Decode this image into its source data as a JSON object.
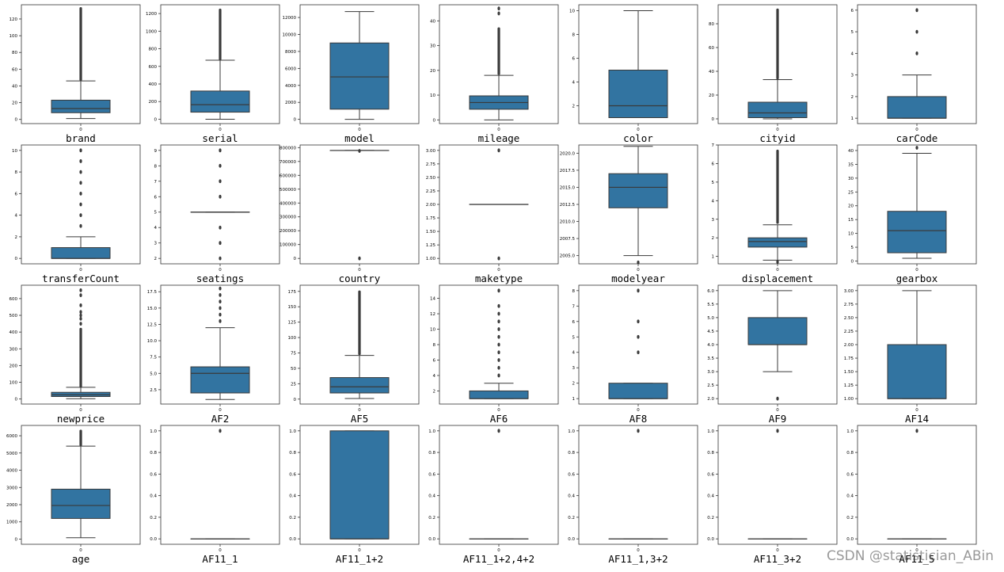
{
  "watermark": "CSDN @statistician_ABin",
  "colors": {
    "box_fill": "#3274a1",
    "line": "#3a3a3a",
    "frame": "#333333",
    "text": "#000000"
  },
  "chart_data": [
    {
      "type": "box",
      "xlabel": "brand",
      "xtick": "0",
      "ylim": [
        -5,
        137
      ],
      "yticks": [
        0,
        20,
        40,
        60,
        80,
        100,
        120
      ],
      "ytick_labels": [
        "0",
        "20",
        "40",
        "60",
        "80",
        "100",
        "120"
      ],
      "stats": {
        "whisker_low": 1,
        "q1": 8,
        "median": 13,
        "q3": 23,
        "whisker_high": 46
      },
      "outliers": [
        {
          "from": 47,
          "to": 133,
          "dense": true
        }
      ]
    },
    {
      "type": "box",
      "xlabel": "serial",
      "xtick": "0",
      "ylim": [
        -50,
        1300
      ],
      "yticks": [
        0,
        200,
        400,
        600,
        800,
        1000,
        1200
      ],
      "ytick_labels": [
        "0",
        "200",
        "400",
        "600",
        "800",
        "1000",
        "1200"
      ],
      "stats": {
        "whisker_low": 0,
        "q1": 80,
        "median": 165,
        "q3": 320,
        "whisker_high": 670
      },
      "outliers": [
        {
          "from": 680,
          "to": 1245,
          "dense": true
        }
      ]
    },
    {
      "type": "box",
      "xlabel": "model",
      "xtick": "0",
      "ylim": [
        -500,
        13500
      ],
      "yticks": [
        0,
        2000,
        4000,
        6000,
        8000,
        10000,
        12000
      ],
      "ytick_labels": [
        "0",
        "2000",
        "4000",
        "6000",
        "8000",
        "10000",
        "12000"
      ],
      "stats": {
        "whisker_low": 0,
        "q1": 1200,
        "median": 5000,
        "q3": 9000,
        "whisker_high": 12700
      },
      "outliers": []
    },
    {
      "type": "box",
      "xlabel": "mileage",
      "xtick": "0",
      "ylim": [
        -1.5,
        46.5
      ],
      "yticks": [
        0,
        10,
        20,
        30,
        40
      ],
      "ytick_labels": [
        "0",
        "10",
        "20",
        "30",
        "40"
      ],
      "stats": {
        "whisker_low": 0,
        "q1": 4.3,
        "median": 7,
        "q3": 9.7,
        "whisker_high": 18
      },
      "outliers": [
        {
          "from": 18.5,
          "to": 37,
          "dense": true
        },
        43,
        45
      ]
    },
    {
      "type": "box",
      "xlabel": "color",
      "xtick": "0",
      "ylim": [
        0.5,
        10.5
      ],
      "yticks": [
        2,
        4,
        6,
        8,
        10
      ],
      "ytick_labels": [
        "2",
        "4",
        "6",
        "8",
        "10"
      ],
      "stats": {
        "whisker_low": 1,
        "q1": 1,
        "median": 2,
        "q3": 5,
        "whisker_high": 10
      },
      "outliers": []
    },
    {
      "type": "box",
      "xlabel": "cityid",
      "xtick": "0",
      "ylim": [
        -4,
        96
      ],
      "yticks": [
        0,
        20,
        40,
        60,
        80
      ],
      "ytick_labels": [
        "0",
        "20",
        "40",
        "60",
        "80"
      ],
      "stats": {
        "whisker_low": 0,
        "q1": 1,
        "median": 5,
        "q3": 14,
        "whisker_high": 33
      },
      "outliers": [
        {
          "from": 34,
          "to": 92,
          "dense": true
        }
      ]
    },
    {
      "type": "box",
      "xlabel": "carCode",
      "xtick": "0",
      "ylim": [
        0.75,
        6.25
      ],
      "yticks": [
        1,
        2,
        3,
        4,
        5,
        6
      ],
      "ytick_labels": [
        "1",
        "2",
        "3",
        "4",
        "5",
        "6"
      ],
      "stats": {
        "whisker_low": 1,
        "q1": 1,
        "median": 1,
        "q3": 2,
        "whisker_high": 3
      },
      "outliers": [
        4,
        5,
        6
      ]
    },
    {
      "type": "box",
      "xlabel": "transferCount",
      "xtick": "0",
      "ylim": [
        -0.5,
        10.5
      ],
      "yticks": [
        0,
        2,
        4,
        6,
        8,
        10
      ],
      "ytick_labels": [
        "0",
        "2",
        "4",
        "6",
        "8",
        "10"
      ],
      "stats": {
        "whisker_low": 0,
        "q1": 0,
        "median": 0,
        "q3": 1,
        "whisker_high": 2
      },
      "outliers": [
        3,
        4,
        5,
        6,
        7,
        8,
        9,
        10
      ]
    },
    {
      "type": "box",
      "xlabel": "seatings",
      "xtick": "0",
      "ylim": [
        1.65,
        9.35
      ],
      "yticks": [
        2,
        3,
        4,
        5,
        6,
        7,
        8,
        9
      ],
      "ytick_labels": [
        "2",
        "3",
        "4",
        "5",
        "6",
        "7",
        "8",
        "9"
      ],
      "stats": {
        "whisker_low": 5,
        "q1": 5,
        "median": 5,
        "q3": 5,
        "whisker_high": 5
      },
      "outliers": [
        2,
        3,
        4,
        6,
        7,
        8,
        9
      ]
    },
    {
      "type": "box",
      "xlabel": "country",
      "xtick": "0",
      "ylim": [
        -39000,
        819000
      ],
      "yticks": [
        0,
        100000,
        200000,
        300000,
        400000,
        500000,
        600000,
        700000,
        800000
      ],
      "ytick_labels": [
        "0",
        "100000",
        "200000",
        "300000",
        "400000",
        "500000",
        "600000",
        "700000",
        "800000"
      ],
      "stats": {
        "whisker_low": 779412,
        "q1": 779412,
        "median": 779412,
        "q3": 779412,
        "whisker_high": 779412
      },
      "outliers": [
        0,
        776000
      ]
    },
    {
      "type": "box",
      "xlabel": "maketype",
      "xtick": "0",
      "ylim": [
        0.9,
        3.1
      ],
      "yticks": [
        1.0,
        1.25,
        1.5,
        1.75,
        2.0,
        2.25,
        2.5,
        2.75,
        3.0
      ],
      "ytick_labels": [
        "1.00",
        "1.25",
        "1.50",
        "1.75",
        "2.00",
        "2.25",
        "2.50",
        "2.75",
        "3.00"
      ],
      "stats": {
        "whisker_low": 2,
        "q1": 2,
        "median": 2,
        "q3": 2,
        "whisker_high": 2
      },
      "outliers": [
        1,
        3
      ]
    },
    {
      "type": "box",
      "xlabel": "modelyear",
      "xtick": "0",
      "ylim": [
        2003.8,
        2021.2
      ],
      "yticks": [
        2005,
        2007.5,
        2010,
        2012.5,
        2015,
        2017.5,
        2020
      ],
      "ytick_labels": [
        "2005.0",
        "2007.5",
        "2010.0",
        "2012.5",
        "2015.0",
        "2017.5",
        "2020.0"
      ],
      "stats": {
        "whisker_low": 2005,
        "q1": 2012,
        "median": 2015,
        "q3": 2017,
        "whisker_high": 2021
      },
      "outliers": [
        2004
      ]
    },
    {
      "type": "box",
      "xlabel": "displacement",
      "xtick": "0",
      "ylim": [
        0.6,
        7.0
      ],
      "yticks": [
        1,
        2,
        3,
        4,
        5,
        6,
        7
      ],
      "ytick_labels": [
        "1",
        "2",
        "3",
        "4",
        "5",
        "6",
        "7"
      ],
      "stats": {
        "whisker_low": 0.8,
        "q1": 1.5,
        "median": 1.8,
        "q3": 2.0,
        "whisker_high": 2.7
      },
      "outliers": [
        0.7,
        {
          "from": 2.8,
          "to": 6.7,
          "dense": true
        }
      ]
    },
    {
      "type": "box",
      "xlabel": "gearbox",
      "xtick": "0",
      "ylim": [
        -1,
        42
      ],
      "yticks": [
        0,
        5,
        10,
        15,
        20,
        25,
        30,
        35,
        40
      ],
      "ytick_labels": [
        "0",
        "5",
        "10",
        "15",
        "20",
        "25",
        "30",
        "35",
        "40"
      ],
      "stats": {
        "whisker_low": 1,
        "q1": 3,
        "median": 11,
        "q3": 18,
        "whisker_high": 39
      },
      "outliers": [
        41
      ]
    },
    {
      "type": "box",
      "xlabel": "newprice",
      "xtick": "0",
      "ylim": [
        -30,
        680
      ],
      "yticks": [
        0,
        100,
        200,
        300,
        400,
        500,
        600
      ],
      "ytick_labels": [
        "0",
        "100",
        "200",
        "300",
        "400",
        "500",
        "600"
      ],
      "stats": {
        "whisker_low": 2,
        "q1": 15,
        "median": 25,
        "q3": 40,
        "whisker_high": 70
      },
      "outliers": [
        {
          "from": 72,
          "to": 420,
          "dense": true
        },
        450,
        480,
        500,
        520,
        560,
        620,
        650
      ]
    },
    {
      "type": "box",
      "xlabel": "AF2",
      "xtick": "0",
      "ylim": [
        0.3,
        18.5
      ],
      "yticks": [
        2.5,
        5.0,
        7.5,
        10.0,
        12.5,
        15.0,
        17.5
      ],
      "ytick_labels": [
        "2.5",
        "5.0",
        "7.5",
        "10.0",
        "12.5",
        "15.0",
        "17.5"
      ],
      "stats": {
        "whisker_low": 1,
        "q1": 2,
        "median": 5,
        "q3": 6,
        "whisker_high": 12
      },
      "outliers": [
        13,
        14,
        15,
        16,
        17,
        18
      ]
    },
    {
      "type": "box",
      "xlabel": "AF5",
      "xtick": "0",
      "ylim": [
        -8,
        185
      ],
      "yticks": [
        0,
        25,
        50,
        75,
        100,
        125,
        150,
        175
      ],
      "ytick_labels": [
        "0",
        "25",
        "50",
        "75",
        "100",
        "125",
        "150",
        "175"
      ],
      "stats": {
        "whisker_low": 1,
        "q1": 10,
        "median": 20,
        "q3": 35,
        "whisker_high": 71
      },
      "outliers": [
        {
          "from": 73,
          "to": 175,
          "dense": true
        }
      ]
    },
    {
      "type": "box",
      "xlabel": "AF6",
      "xtick": "0",
      "ylim": [
        0.3,
        15.7
      ],
      "yticks": [
        2,
        4,
        6,
        8,
        10,
        12,
        14
      ],
      "ytick_labels": [
        "2",
        "4",
        "6",
        "8",
        "10",
        "12",
        "14"
      ],
      "stats": {
        "whisker_low": 1,
        "q1": 1,
        "median": 1,
        "q3": 2,
        "whisker_high": 3
      },
      "outliers": [
        4,
        5,
        6,
        7,
        8,
        9,
        10,
        11,
        12,
        13,
        15
      ]
    },
    {
      "type": "box",
      "xlabel": "AF8",
      "xtick": "0",
      "ylim": [
        0.65,
        8.35
      ],
      "yticks": [
        1,
        2,
        3,
        4,
        5,
        6,
        7,
        8
      ],
      "ytick_labels": [
        "1",
        "2",
        "3",
        "4",
        "5",
        "6",
        "7",
        "8"
      ],
      "stats": {
        "whisker_low": 1,
        "q1": 1,
        "median": 1,
        "q3": 2,
        "whisker_high": 2
      },
      "outliers": [
        4,
        5,
        6,
        8
      ]
    },
    {
      "type": "box",
      "xlabel": "AF9",
      "xtick": "0",
      "ylim": [
        1.8,
        6.2
      ],
      "yticks": [
        2.0,
        2.5,
        3.0,
        3.5,
        4.0,
        4.5,
        5.0,
        5.5,
        6.0
      ],
      "ytick_labels": [
        "2.0",
        "2.5",
        "3.0",
        "3.5",
        "4.0",
        "4.5",
        "5.0",
        "5.5",
        "6.0"
      ],
      "stats": {
        "whisker_low": 3,
        "q1": 4,
        "median": 4,
        "q3": 5,
        "whisker_high": 6
      },
      "outliers": [
        2
      ]
    },
    {
      "type": "box",
      "xlabel": "AF14",
      "xtick": "0",
      "ylim": [
        0.9,
        3.1
      ],
      "yticks": [
        1.0,
        1.25,
        1.5,
        1.75,
        2.0,
        2.25,
        2.5,
        2.75,
        3.0
      ],
      "ytick_labels": [
        "1.00",
        "1.25",
        "1.50",
        "1.75",
        "2.00",
        "2.25",
        "2.50",
        "2.75",
        "3.00"
      ],
      "stats": {
        "whisker_low": 1,
        "q1": 1,
        "median": 1,
        "q3": 2,
        "whisker_high": 3
      },
      "outliers": []
    },
    {
      "type": "box",
      "xlabel": "age",
      "xtick": "0",
      "ylim": [
        -300,
        6600
      ],
      "yticks": [
        0,
        1000,
        2000,
        3000,
        4000,
        5000,
        6000
      ],
      "ytick_labels": [
        "0",
        "1000",
        "2000",
        "3000",
        "4000",
        "5000",
        "6000"
      ],
      "stats": {
        "whisker_low": 80,
        "q1": 1200,
        "median": 1950,
        "q3": 2900,
        "whisker_high": 5400
      },
      "outliers": [
        {
          "from": 5450,
          "to": 6300,
          "dense": true
        }
      ]
    },
    {
      "type": "box",
      "xlabel": "AF11_1",
      "xtick": "0",
      "ylim": [
        -0.05,
        1.05
      ],
      "yticks": [
        0,
        0.2,
        0.4,
        0.6,
        0.8,
        1.0
      ],
      "ytick_labels": [
        "0.0",
        "0.2",
        "0.4",
        "0.6",
        "0.8",
        "1.0"
      ],
      "stats": {
        "whisker_low": 0,
        "q1": 0,
        "median": 0,
        "q3": 0,
        "whisker_high": 0
      },
      "outliers": [
        1
      ]
    },
    {
      "type": "box",
      "xlabel": "AF11_1+2",
      "xtick": "0",
      "ylim": [
        -0.05,
        1.05
      ],
      "yticks": [
        0,
        0.2,
        0.4,
        0.6,
        0.8,
        1.0
      ],
      "ytick_labels": [
        "0.0",
        "0.2",
        "0.4",
        "0.6",
        "0.8",
        "1.0"
      ],
      "stats": {
        "whisker_low": 0,
        "q1": 0,
        "median": 0,
        "q3": 1,
        "whisker_high": 1
      },
      "outliers": []
    },
    {
      "type": "box",
      "xlabel": "AF11_1+2,4+2",
      "xtick": "0",
      "ylim": [
        -0.05,
        1.05
      ],
      "yticks": [
        0,
        0.2,
        0.4,
        0.6,
        0.8,
        1.0
      ],
      "ytick_labels": [
        "0.0",
        "0.2",
        "0.4",
        "0.6",
        "0.8",
        "1.0"
      ],
      "stats": {
        "whisker_low": 0,
        "q1": 0,
        "median": 0,
        "q3": 0,
        "whisker_high": 0
      },
      "outliers": [
        1
      ]
    },
    {
      "type": "box",
      "xlabel": "AF11_1,3+2",
      "xtick": "0",
      "ylim": [
        -0.05,
        1.05
      ],
      "yticks": [
        0,
        0.2,
        0.4,
        0.6,
        0.8,
        1.0
      ],
      "ytick_labels": [
        "0.0",
        "0.2",
        "0.4",
        "0.6",
        "0.8",
        "1.0"
      ],
      "stats": {
        "whisker_low": 0,
        "q1": 0,
        "median": 0,
        "q3": 0,
        "whisker_high": 0
      },
      "outliers": [
        1
      ]
    },
    {
      "type": "box",
      "xlabel": "AF11_3+2",
      "xtick": "0",
      "ylim": [
        -0.05,
        1.05
      ],
      "yticks": [
        0,
        0.2,
        0.4,
        0.6,
        0.8,
        1.0
      ],
      "ytick_labels": [
        "0.0",
        "0.2",
        "0.4",
        "0.6",
        "0.8",
        "1.0"
      ],
      "stats": {
        "whisker_low": 0,
        "q1": 0,
        "median": 0,
        "q3": 0,
        "whisker_high": 0
      },
      "outliers": [
        1
      ]
    },
    {
      "type": "box",
      "xlabel": "AF11_5",
      "xtick": "0",
      "ylim": [
        -0.05,
        1.05
      ],
      "yticks": [
        0,
        0.2,
        0.4,
        0.6,
        0.8,
        1.0
      ],
      "ytick_labels": [
        "0.0",
        "0.2",
        "0.4",
        "0.6",
        "0.8",
        "1.0"
      ],
      "stats": {
        "whisker_low": 0,
        "q1": 0,
        "median": 0,
        "q3": 0,
        "whisker_high": 0
      },
      "outliers": [
        1
      ]
    }
  ]
}
